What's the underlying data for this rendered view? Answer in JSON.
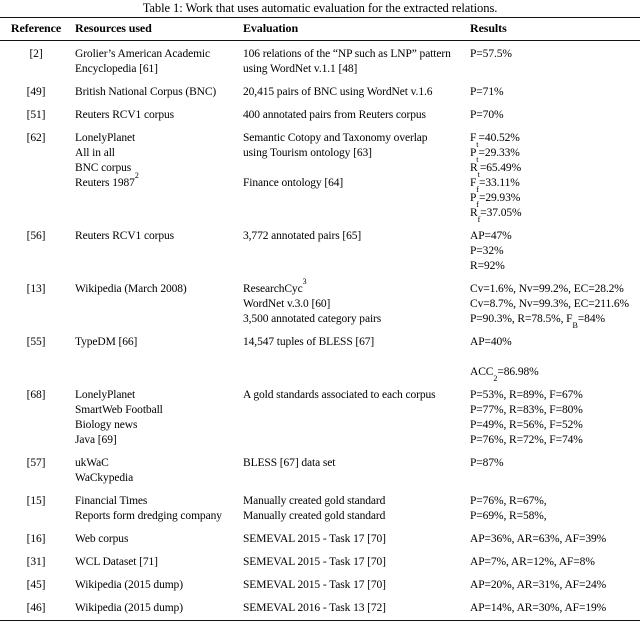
{
  "title": "Table 1: Work that uses automatic evaluation for the extracted relations.",
  "table": {
    "columns": [
      "Reference",
      "Resources used",
      "Evaluation",
      "Results"
    ],
    "rows": [
      {
        "ref": "[2]",
        "resources": [
          "Grolier’s American Academic",
          "Encyclopedia [61]"
        ],
        "evaluation": [
          "106 relations of the “NP such as LNP” pattern",
          "using WordNet v.1.1 [48]"
        ],
        "results": [
          "P=57.5%"
        ]
      },
      {
        "ref": "[49]",
        "resources": [
          "British National Corpus (BNC)"
        ],
        "evaluation": [
          "20,415 pairs of BNC using WordNet v.1.6"
        ],
        "results": [
          "P=71%"
        ]
      },
      {
        "ref": "[51]",
        "resources": [
          "Reuters RCV1 corpus"
        ],
        "evaluation": [
          "400 annotated pairs from Reuters corpus"
        ],
        "results": [
          "P=70%"
        ]
      },
      {
        "ref": "[62]",
        "resources": [
          "LonelyPlanet",
          "All in all",
          "BNC corpus",
          "Reuters 1987^{2}"
        ],
        "evaluation": [
          "Semantic Cotopy and Taxonomy overlap",
          "using Tourism ontology [63]",
          "",
          "Finance ontology [64]"
        ],
        "results": [
          "F_{t}=40.52%",
          "P_{t}=29.33%",
          "R_{t}=65.49%",
          "F_{f}=33.11%",
          "P_{f}=29.93%",
          "R_{f}=37.05%"
        ]
      },
      {
        "ref": "[56]",
        "resources": [
          "Reuters RCV1 corpus"
        ],
        "evaluation": [
          "3,772 annotated pairs [65]"
        ],
        "results": [
          "AP=47%",
          "P=32%",
          "R=92%"
        ]
      },
      {
        "ref": "[13]",
        "resources": [
          "Wikipedia (March 2008)"
        ],
        "evaluation": [
          "ResearchCyc^{3}",
          "WordNet v.3.0 [60]",
          "3,500 annotated category pairs"
        ],
        "results": [
          "Cv=1.6%, Nv=99.2%, EC=28.2%",
          "Cv=8.7%, Nv=99.3%, EC=211.6%",
          "P=90.3%, R=78.5%, F_{B}=84%"
        ]
      },
      {
        "ref": "[55]",
        "resources": [
          "TypeDM [66]"
        ],
        "evaluation": [
          "14,547 tuples of BLESS [67]"
        ],
        "results": [
          "AP=40%",
          "",
          "ACC_{2}=86.98%"
        ]
      },
      {
        "ref": "[68]",
        "resources": [
          "LonelyPlanet",
          "SmartWeb Football",
          "Biology news",
          "Java [69]"
        ],
        "evaluation": [
          "A gold standards associated to each corpus"
        ],
        "results": [
          "P=53%, R=89%, F=67%",
          "P=77%, R=83%, F=80%",
          "P=49%, R=56%, F=52%",
          "P=76%, R=72%, F=74%"
        ]
      },
      {
        "ref": "[57]",
        "resources": [
          "ukWaC",
          "WaCkypedia"
        ],
        "evaluation": [
          "BLESS [67] data set"
        ],
        "results": [
          "P=87%"
        ]
      },
      {
        "ref": "[15]",
        "resources": [
          "Financial Times",
          "Reports form dredging company"
        ],
        "evaluation": [
          "Manually created gold standard",
          "Manually created gold standard"
        ],
        "results": [
          "P=76%, R=67%,",
          "P=69%, R=58%,"
        ]
      },
      {
        "ref": "[16]",
        "resources": [
          "Web corpus"
        ],
        "evaluation": [
          "SEMEVAL 2015 - Task 17 [70]"
        ],
        "results": [
          "AP=36%, AR=63%, AF=39%"
        ]
      },
      {
        "ref": "[31]",
        "resources": [
          "WCL Dataset [71]"
        ],
        "evaluation": [
          "SEMEVAL 2015 - Task 17 [70]"
        ],
        "results": [
          "AP=7%, AR=12%, AF=8%"
        ]
      },
      {
        "ref": "[45]",
        "resources": [
          "Wikipedia (2015 dump)"
        ],
        "evaluation": [
          "SEMEVAL 2015 - Task 17 [70]"
        ],
        "results": [
          "AP=20%, AR=31%, AF=24%"
        ]
      },
      {
        "ref": "[46]",
        "resources": [
          "Wikipedia (2015 dump)"
        ],
        "evaluation": [
          "SEMEVAL 2016 - Task 13 [72]"
        ],
        "results": [
          "AP=14%, AR=30%, AF=19%"
        ]
      }
    ]
  }
}
